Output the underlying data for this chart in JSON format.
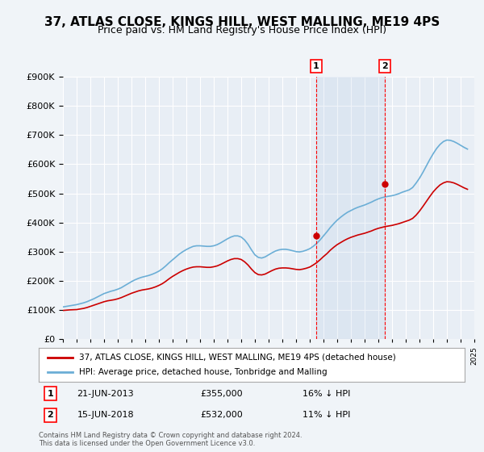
{
  "title": "37, ATLAS CLOSE, KINGS HILL, WEST MALLING, ME19 4PS",
  "subtitle": "Price paid vs. HM Land Registry's House Price Index (HPI)",
  "title_fontsize": 11,
  "subtitle_fontsize": 9,
  "background_color": "#f0f4f8",
  "plot_bg_color": "#e8eef5",
  "ylim": [
    0,
    900000
  ],
  "yticks": [
    0,
    100000,
    200000,
    300000,
    400000,
    500000,
    600000,
    700000,
    800000,
    900000
  ],
  "ylabel_format": "£{0}K",
  "start_year": 1995,
  "end_year": 2025,
  "hpi_color": "#6baed6",
  "price_color": "#cc0000",
  "marker1_year": 2013.47,
  "marker2_year": 2018.46,
  "marker1_price": 355000,
  "marker2_price": 532000,
  "marker1_date": "21-JUN-2013",
  "marker2_date": "15-JUN-2018",
  "marker1_hpi_pct": "16%",
  "marker2_hpi_pct": "11%",
  "legend_label_red": "37, ATLAS CLOSE, KINGS HILL, WEST MALLING, ME19 4PS (detached house)",
  "legend_label_blue": "HPI: Average price, detached house, Tonbridge and Malling",
  "footer": "Contains HM Land Registry data © Crown copyright and database right 2024.\nThis data is licensed under the Open Government Licence v3.0.",
  "hpi_data_x": [
    1995,
    1995.25,
    1995.5,
    1995.75,
    1996,
    1996.25,
    1996.5,
    1996.75,
    1997,
    1997.25,
    1997.5,
    1997.75,
    1998,
    1998.25,
    1998.5,
    1998.75,
    1999,
    1999.25,
    1999.5,
    1999.75,
    2000,
    2000.25,
    2000.5,
    2000.75,
    2001,
    2001.25,
    2001.5,
    2001.75,
    2002,
    2002.25,
    2002.5,
    2002.75,
    2003,
    2003.25,
    2003.5,
    2003.75,
    2004,
    2004.25,
    2004.5,
    2004.75,
    2005,
    2005.25,
    2005.5,
    2005.75,
    2006,
    2006.25,
    2006.5,
    2006.75,
    2007,
    2007.25,
    2007.5,
    2007.75,
    2008,
    2008.25,
    2008.5,
    2008.75,
    2009,
    2009.25,
    2009.5,
    2009.75,
    2010,
    2010.25,
    2010.5,
    2010.75,
    2011,
    2011.25,
    2011.5,
    2011.75,
    2012,
    2012.25,
    2012.5,
    2012.75,
    2013,
    2013.25,
    2013.5,
    2013.75,
    2014,
    2014.25,
    2014.5,
    2014.75,
    2015,
    2015.25,
    2015.5,
    2015.75,
    2016,
    2016.25,
    2016.5,
    2016.75,
    2017,
    2017.25,
    2017.5,
    2017.75,
    2018,
    2018.25,
    2018.5,
    2018.75,
    2019,
    2019.25,
    2019.5,
    2019.75,
    2020,
    2020.25,
    2020.5,
    2020.75,
    2021,
    2021.25,
    2021.5,
    2021.75,
    2022,
    2022.25,
    2022.5,
    2022.75,
    2023,
    2023.25,
    2023.5,
    2023.75,
    2024,
    2024.25,
    2024.5
  ],
  "hpi_data_y": [
    110000,
    112000,
    114000,
    116000,
    118000,
    121000,
    124000,
    128000,
    133000,
    138000,
    144000,
    150000,
    156000,
    160000,
    164000,
    167000,
    171000,
    176000,
    183000,
    190000,
    197000,
    203000,
    208000,
    212000,
    215000,
    218000,
    222000,
    227000,
    233000,
    241000,
    251000,
    262000,
    272000,
    282000,
    292000,
    300000,
    307000,
    313000,
    318000,
    320000,
    320000,
    319000,
    318000,
    318000,
    320000,
    324000,
    330000,
    337000,
    344000,
    350000,
    354000,
    354000,
    350000,
    340000,
    325000,
    306000,
    289000,
    280000,
    278000,
    282000,
    289000,
    296000,
    302000,
    306000,
    308000,
    308000,
    306000,
    303000,
    300000,
    299000,
    301000,
    305000,
    310000,
    318000,
    328000,
    340000,
    354000,
    368000,
    383000,
    396000,
    408000,
    418000,
    427000,
    435000,
    441000,
    447000,
    452000,
    456000,
    460000,
    465000,
    470000,
    476000,
    481000,
    485000,
    488000,
    490000,
    492000,
    495000,
    499000,
    504000,
    508000,
    512000,
    520000,
    535000,
    552000,
    572000,
    594000,
    616000,
    636000,
    654000,
    668000,
    678000,
    683000,
    682000,
    678000,
    672000,
    665000,
    658000,
    652000
  ],
  "price_data_x": [
    1995,
    1995.25,
    1995.5,
    1995.75,
    1996,
    1996.25,
    1996.5,
    1996.75,
    1997,
    1997.25,
    1997.5,
    1997.75,
    1998,
    1998.25,
    1998.5,
    1998.75,
    1999,
    1999.25,
    1999.5,
    1999.75,
    2000,
    2000.25,
    2000.5,
    2000.75,
    2001,
    2001.25,
    2001.5,
    2001.75,
    2002,
    2002.25,
    2002.5,
    2002.75,
    2003,
    2003.25,
    2003.5,
    2003.75,
    2004,
    2004.25,
    2004.5,
    2004.75,
    2005,
    2005.25,
    2005.5,
    2005.75,
    2006,
    2006.25,
    2006.5,
    2006.75,
    2007,
    2007.25,
    2007.5,
    2007.75,
    2008,
    2008.25,
    2008.5,
    2008.75,
    2009,
    2009.25,
    2009.5,
    2009.75,
    2010,
    2010.25,
    2010.5,
    2010.75,
    2011,
    2011.25,
    2011.5,
    2011.75,
    2012,
    2012.25,
    2012.5,
    2012.75,
    2013,
    2013.25,
    2013.5,
    2013.75,
    2014,
    2014.25,
    2014.5,
    2014.75,
    2015,
    2015.25,
    2015.5,
    2015.75,
    2016,
    2016.25,
    2016.5,
    2016.75,
    2017,
    2017.25,
    2017.5,
    2017.75,
    2018,
    2018.25,
    2018.5,
    2018.75,
    2019,
    2019.25,
    2019.5,
    2019.75,
    2020,
    2020.25,
    2020.5,
    2020.75,
    2021,
    2021.25,
    2021.5,
    2021.75,
    2022,
    2022.25,
    2022.5,
    2022.75,
    2023,
    2023.25,
    2023.5,
    2023.75,
    2024,
    2024.25,
    2024.5
  ],
  "price_data_y": [
    98000,
    99000,
    100000,
    100500,
    101000,
    103000,
    105000,
    108000,
    112000,
    116000,
    120000,
    124000,
    128000,
    131000,
    133000,
    135000,
    138000,
    142000,
    147000,
    152000,
    157000,
    161000,
    165000,
    168000,
    170000,
    172000,
    175000,
    179000,
    184000,
    190000,
    198000,
    207000,
    215000,
    222000,
    229000,
    235000,
    240000,
    244000,
    247000,
    248000,
    248000,
    247000,
    246000,
    246000,
    248000,
    251000,
    256000,
    262000,
    268000,
    273000,
    276000,
    276000,
    273000,
    265000,
    254000,
    240000,
    228000,
    221000,
    220000,
    223000,
    229000,
    235000,
    240000,
    243000,
    244000,
    244000,
    243000,
    241000,
    239000,
    238000,
    240000,
    243000,
    247000,
    254000,
    262000,
    272000,
    283000,
    293000,
    305000,
    315000,
    324000,
    331000,
    338000,
    344000,
    349000,
    353000,
    357000,
    360000,
    363000,
    367000,
    371000,
    376000,
    380000,
    383000,
    386000,
    388000,
    390000,
    393000,
    396000,
    400000,
    404000,
    408000,
    414000,
    425000,
    439000,
    455000,
    472000,
    489000,
    505000,
    518000,
    529000,
    536000,
    540000,
    539000,
    536000,
    531000,
    525000,
    519000,
    514000
  ]
}
